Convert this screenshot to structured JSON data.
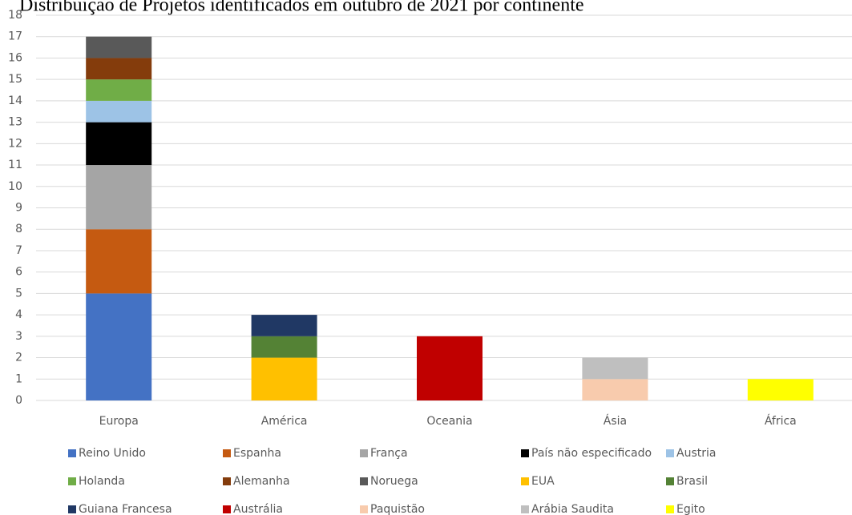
{
  "chart_data": {
    "type": "stacked_bar",
    "title": "Distribuição de Projetos identificados em outubro de 2021 por continente",
    "categories": [
      "Europa",
      "América",
      "Oceania",
      "Ásia",
      "África"
    ],
    "ylim": [
      0,
      18
    ],
    "yticks": [
      0,
      1,
      2,
      3,
      4,
      5,
      6,
      7,
      8,
      9,
      10,
      11,
      12,
      13,
      14,
      15,
      16,
      17,
      18
    ],
    "grid": true,
    "legend": "bottom",
    "series": [
      {
        "name": "Reino Unido",
        "color": "#4472c4",
        "values": [
          5,
          0,
          0,
          0,
          0
        ]
      },
      {
        "name": "Espanha",
        "color": "#c55a11",
        "values": [
          3,
          0,
          0,
          0,
          0
        ]
      },
      {
        "name": "França",
        "color": "#a5a5a5",
        "values": [
          3,
          0,
          0,
          0,
          0
        ]
      },
      {
        "name": "País não especificado",
        "color": "#000000",
        "values": [
          2,
          0,
          0,
          0,
          0
        ]
      },
      {
        "name": "Austria",
        "color": "#9dc3e6",
        "values": [
          1,
          0,
          0,
          0,
          0
        ]
      },
      {
        "name": "Holanda",
        "color": "#70ad47",
        "values": [
          1,
          0,
          0,
          0,
          0
        ]
      },
      {
        "name": "Alemanha",
        "color": "#843c0c",
        "values": [
          1,
          0,
          0,
          0,
          0
        ]
      },
      {
        "name": "Noruega",
        "color": "#595959",
        "values": [
          1,
          0,
          0,
          0,
          0
        ]
      },
      {
        "name": "EUA",
        "color": "#ffc000",
        "values": [
          0,
          2,
          0,
          0,
          0
        ]
      },
      {
        "name": "Brasil",
        "color": "#548235",
        "values": [
          0,
          1,
          0,
          0,
          0
        ]
      },
      {
        "name": "Guiana Francesa",
        "color": "#203864",
        "values": [
          0,
          1,
          0,
          0,
          0
        ]
      },
      {
        "name": "Austrália",
        "color": "#c00000",
        "values": [
          0,
          0,
          3,
          0,
          0
        ]
      },
      {
        "name": "Paquistão",
        "color": "#f8cbad",
        "values": [
          0,
          0,
          0,
          1,
          0
        ]
      },
      {
        "name": "Arábia Saudita",
        "color": "#bfbfbf",
        "values": [
          0,
          0,
          0,
          1,
          0
        ]
      },
      {
        "name": "Egito",
        "color": "#ffff00",
        "values": [
          0,
          0,
          0,
          0,
          1
        ]
      }
    ]
  }
}
